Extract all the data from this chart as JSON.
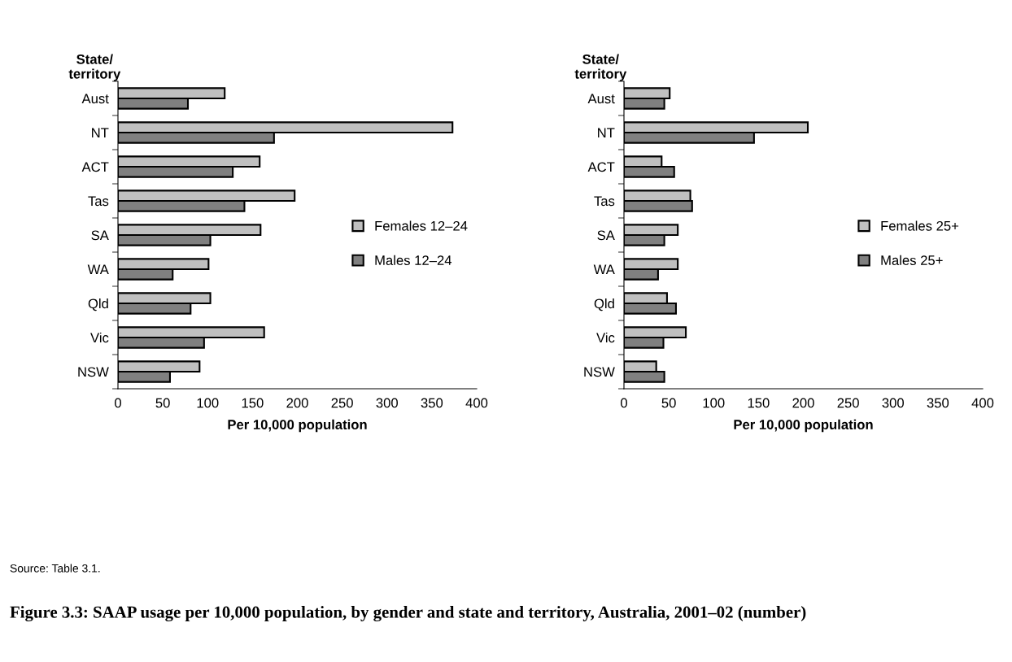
{
  "chart_data": [
    {
      "type": "bar",
      "orientation": "horizontal",
      "title": "Figure 3.3: SAAP usage per 10,000 population, by gender and state and territory, Australia, 2001–02 (number)",
      "annotations": [
        "Source: Table 3.1."
      ],
      "ylabel": "State/\nterritory",
      "xlabel": "Per 10,000 population",
      "categories": [
        "Aust",
        "NT",
        "ACT",
        "Tas",
        "SA",
        "WA",
        "Qld",
        "Vic",
        "NSW"
      ],
      "series": [
        {
          "name": "Females 12–24",
          "color": "#c0c0c0",
          "values": [
            119,
            373,
            158,
            197,
            159,
            101,
            103,
            163,
            91
          ]
        },
        {
          "name": "Males 12–24",
          "color": "#808080",
          "values": [
            78,
            174,
            128,
            141,
            103,
            61,
            81,
            96,
            58
          ]
        }
      ],
      "xlim": [
        0,
        400
      ],
      "xticks": [
        0,
        50,
        100,
        150,
        200,
        250,
        300,
        350,
        400
      ],
      "legend": "right",
      "grid": false
    },
    {
      "type": "bar",
      "orientation": "horizontal",
      "ylabel": "State/\nterritory",
      "xlabel": "Per 10,000 population",
      "categories": [
        "Aust",
        "NT",
        "ACT",
        "Tas",
        "SA",
        "WA",
        "Qld",
        "Vic",
        "NSW"
      ],
      "series": [
        {
          "name": "Females 25+",
          "color": "#c0c0c0",
          "values": [
            51,
            205,
            42,
            74,
            60,
            60,
            48,
            69,
            36
          ]
        },
        {
          "name": "Males 25+",
          "color": "#808080",
          "values": [
            45,
            145,
            56,
            76,
            45,
            38,
            58,
            44,
            45
          ]
        }
      ],
      "xlim": [
        0,
        400
      ],
      "xticks": [
        0,
        50,
        100,
        150,
        200,
        250,
        300,
        350,
        400
      ],
      "legend": "right",
      "grid": false
    }
  ]
}
